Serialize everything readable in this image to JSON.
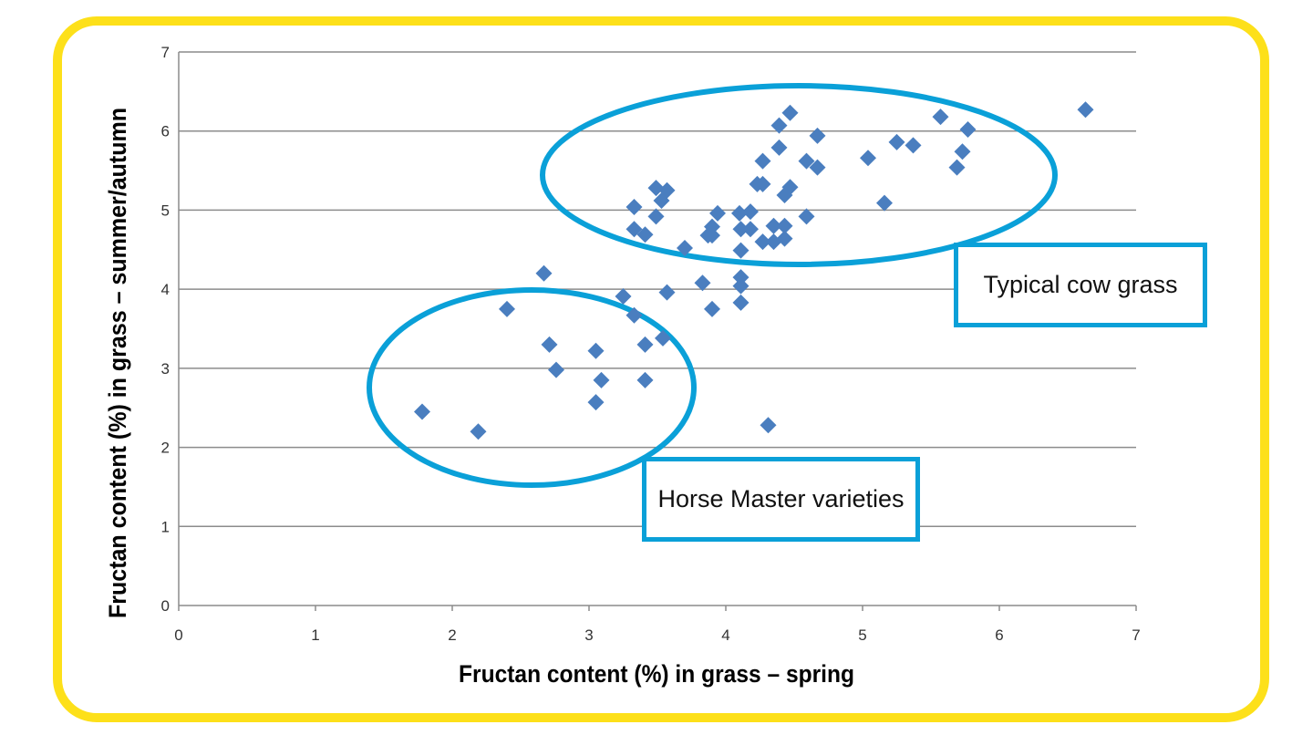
{
  "chart_data": {
    "type": "scatter",
    "xlabel": "Fructan content (%) in grass – spring",
    "ylabel": "Fructan content (%) in grass – summer/autumn",
    "xlim": [
      0,
      7
    ],
    "ylim": [
      0,
      7
    ],
    "xticks": [
      "0",
      "1",
      "2",
      "3",
      "4",
      "5",
      "6",
      "7"
    ],
    "yticks": [
      "0",
      "1",
      "2",
      "3",
      "4",
      "5",
      "6",
      "7"
    ],
    "grid": "horizontal",
    "marker_color": "#4a7ebf",
    "annotations": [
      "Typical cow grass",
      "Horse Master varieties"
    ],
    "annotation_color": "#0aa0d8",
    "points": [
      [
        1.78,
        2.45
      ],
      [
        2.19,
        2.2
      ],
      [
        2.4,
        3.75
      ],
      [
        2.67,
        4.2
      ],
      [
        2.71,
        3.3
      ],
      [
        2.76,
        2.98
      ],
      [
        3.05,
        3.22
      ],
      [
        3.05,
        2.57
      ],
      [
        3.09,
        2.85
      ],
      [
        3.25,
        3.91
      ],
      [
        3.33,
        3.67
      ],
      [
        3.33,
        5.04
      ],
      [
        3.33,
        4.76
      ],
      [
        3.41,
        4.69
      ],
      [
        3.41,
        3.3
      ],
      [
        3.41,
        2.85
      ],
      [
        3.49,
        5.28
      ],
      [
        3.49,
        4.92
      ],
      [
        3.53,
        5.12
      ],
      [
        3.54,
        3.38
      ],
      [
        3.57,
        5.25
      ],
      [
        3.57,
        3.96
      ],
      [
        3.7,
        4.52
      ],
      [
        3.83,
        4.08
      ],
      [
        3.87,
        4.68
      ],
      [
        3.9,
        4.79
      ],
      [
        3.9,
        3.75
      ],
      [
        3.94,
        4.96
      ],
      [
        3.9,
        4.68
      ],
      [
        4.1,
        4.96
      ],
      [
        4.11,
        4.76
      ],
      [
        4.11,
        4.49
      ],
      [
        4.11,
        4.15
      ],
      [
        4.11,
        4.04
      ],
      [
        4.11,
        3.83
      ],
      [
        4.18,
        4.98
      ],
      [
        4.18,
        4.76
      ],
      [
        4.23,
        5.33
      ],
      [
        4.27,
        5.62
      ],
      [
        4.27,
        5.33
      ],
      [
        4.27,
        4.6
      ],
      [
        4.35,
        4.8
      ],
      [
        4.35,
        4.6
      ],
      [
        4.39,
        5.79
      ],
      [
        4.39,
        6.07
      ],
      [
        4.43,
        5.19
      ],
      [
        4.43,
        4.8
      ],
      [
        4.43,
        4.64
      ],
      [
        4.47,
        5.29
      ],
      [
        4.47,
        6.23
      ],
      [
        4.31,
        2.28
      ],
      [
        4.59,
        5.62
      ],
      [
        4.59,
        4.92
      ],
      [
        4.67,
        5.94
      ],
      [
        4.67,
        5.54
      ],
      [
        5.04,
        5.66
      ],
      [
        5.16,
        5.09
      ],
      [
        5.25,
        5.86
      ],
      [
        5.37,
        5.82
      ],
      [
        5.57,
        6.18
      ],
      [
        5.69,
        5.54
      ],
      [
        5.73,
        5.74
      ],
      [
        5.77,
        6.02
      ],
      [
        6.63,
        6.27
      ]
    ]
  }
}
